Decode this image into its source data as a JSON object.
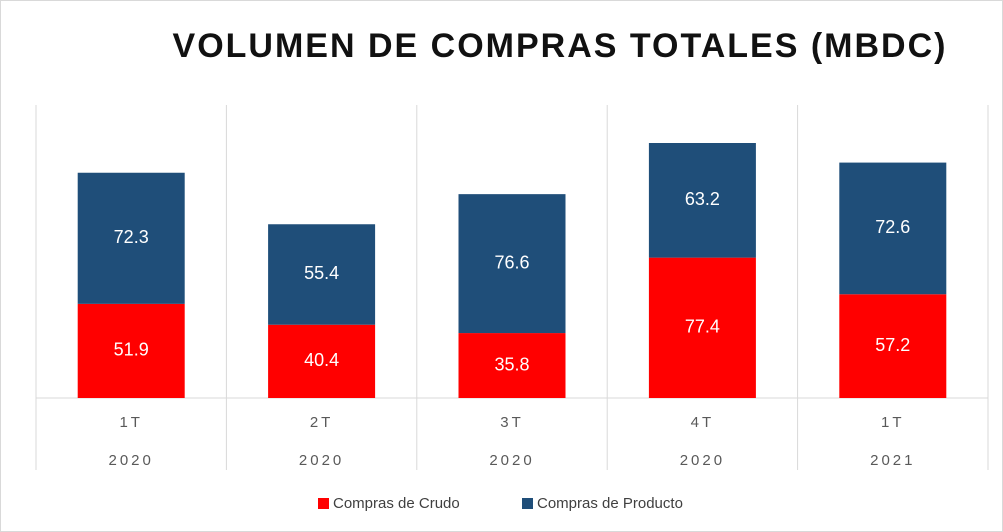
{
  "chart_data": {
    "type": "stacked_bar",
    "title": "VOLUMEN  DE  COMPRAS  TOTALES  (MBDC)",
    "categories": [
      [
        "1T",
        "2020"
      ],
      [
        "2T",
        "2020"
      ],
      [
        "3T",
        "2020"
      ],
      [
        "4T",
        "2020"
      ],
      [
        "1T",
        "2021"
      ]
    ],
    "series": [
      {
        "name": "Compras de Crudo",
        "color": "#ff0000",
        "values": [
          51.9,
          40.4,
          35.8,
          77.4,
          57.2
        ]
      },
      {
        "name": "Compras de Producto",
        "color": "#1f4e79",
        "values": [
          72.3,
          55.4,
          76.6,
          63.2,
          72.6
        ]
      }
    ],
    "legend": "bottom"
  }
}
